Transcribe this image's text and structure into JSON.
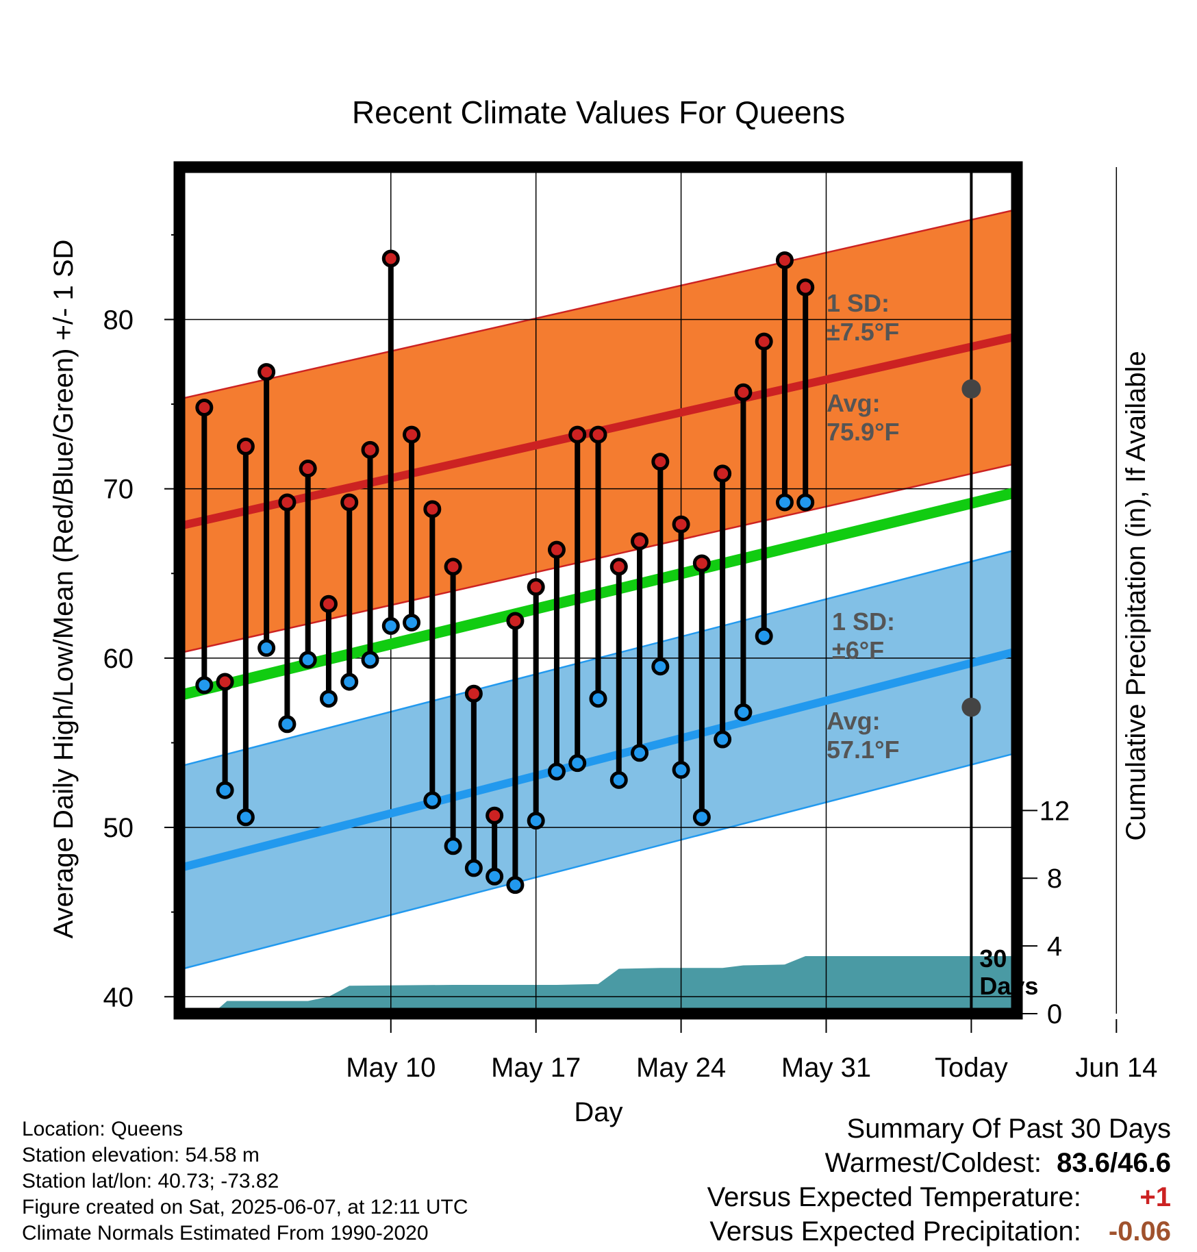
{
  "chart_data": {
    "type": "line",
    "title": "Recent Climate Values For Queens",
    "xlabel": "Day",
    "ylabel": "Average Daily High/Low/Mean (Red/Blue/Green) +/- 1 SD",
    "y2label": "Cumulative Precipitation (in), If Available",
    "xlim": [
      -8.2,
      32.2
    ],
    "ylim": [
      39,
      89
    ],
    "y2lim": [
      0,
      50
    ],
    "x_ticks": [
      2,
      9,
      16,
      23,
      30,
      37
    ],
    "x_tick_labels": [
      "May 10",
      "May 17",
      "May 24",
      "May 31",
      "Today",
      "Jun 14"
    ],
    "y_ticks": [
      40,
      50,
      60,
      70,
      80
    ],
    "y2_ticks": [
      0,
      4,
      8,
      12
    ],
    "today": 30,
    "today_label": "30\nDays",
    "daily_high": [
      74.8,
      58.6,
      72.5,
      76.9,
      69.2,
      71.2,
      63.2,
      69.2,
      72.3,
      83.6,
      73.2,
      68.8,
      65.4,
      57.9,
      50.7,
      62.2,
      64.2,
      66.4,
      73.2,
      73.2,
      65.4,
      66.9,
      71.6,
      67.9,
      65.6,
      70.9,
      75.7,
      78.7,
      83.5,
      81.9
    ],
    "daily_low": [
      58.4,
      52.2,
      50.6,
      60.6,
      56.1,
      59.9,
      57.6,
      58.6,
      59.9,
      61.9,
      62.1,
      51.6,
      48.9,
      47.6,
      47.1,
      46.6,
      50.4,
      53.3,
      53.8,
      57.6,
      52.8,
      54.4,
      59.5,
      53.4,
      50.6,
      55.2,
      56.8,
      61.3,
      69.2,
      69.2
    ],
    "avg_high": {
      "start": 67.8,
      "end": 79.0
    },
    "high_sd": 7.5,
    "avg_low": {
      "start": 47.6,
      "end": 60.4
    },
    "low_sd": 6,
    "avg_mean": {
      "start": 57.8,
      "end": 69.8
    },
    "high_annotation": {
      "sd_label": "1 SD:",
      "sd_value": "±7.5°F",
      "avg_label": "Avg:",
      "avg_value": "75.9°F",
      "avg": 75.9
    },
    "low_annotation": {
      "sd_label": "1 SD:",
      "sd_value": "±6°F",
      "avg_label": "Avg:",
      "avg_value": "57.1°F",
      "avg": 57.1
    },
    "precip_cumulative": [
      [
        -6.6,
        0
      ],
      [
        -5.9,
        0.75
      ],
      [
        -5.0,
        0.75
      ],
      [
        -2.0,
        0.75
      ],
      [
        -1.0,
        1.0
      ],
      [
        0.0,
        1.65
      ],
      [
        5.0,
        1.7
      ],
      [
        10.0,
        1.7
      ],
      [
        12.0,
        1.75
      ],
      [
        13.0,
        2.65
      ],
      [
        15.0,
        2.7
      ],
      [
        18.0,
        2.7
      ],
      [
        19.0,
        2.85
      ],
      [
        21.0,
        2.9
      ],
      [
        22.0,
        3.4
      ],
      [
        32.2,
        3.4
      ]
    ],
    "colors": {
      "high": "#cc2222",
      "low": "#2299ee",
      "mean": "#11cc11",
      "high_band": "#f47c30",
      "low_band": "#82c0e6",
      "precip": "#4a9aa4",
      "annotation": "#555555"
    }
  },
  "info": {
    "location": "Location: Queens",
    "elevation": "Station elevation: 54.58 m",
    "latlon": "Station lat/lon: 40.73; -73.82",
    "created": "Figure created on Sat, 2025-06-07, at 12:11 UTC",
    "normals": "Climate Normals Estimated From 1990-2020"
  },
  "summary": {
    "title": "Summary Of Past 30 Days",
    "extremes_label": "Warmest/Coldest:",
    "extremes_value": "83.6/46.6",
    "temp_label": "Versus Expected Temperature:",
    "temp_value": "+1",
    "temp_color": "#cc2222",
    "precip_label": "Versus Expected Precipitation:",
    "precip_value": "-0.06",
    "precip_color": "#a0522d"
  }
}
